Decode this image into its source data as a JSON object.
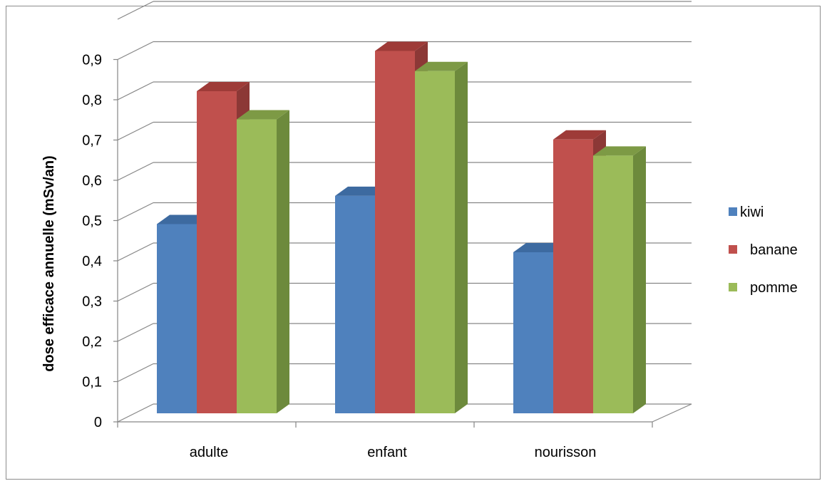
{
  "chart_data": {
    "type": "bar",
    "title": "",
    "xlabel": "",
    "ylabel": "dose efficace annuelle  (mSv/an)",
    "ylim": [
      0,
      0.9
    ],
    "yticks": [
      "0",
      "0,1",
      "0,2",
      "0,3",
      "0,4",
      "0,5",
      "0,6",
      "0,7",
      "0,8",
      "0,9"
    ],
    "categories": [
      "adulte",
      "enfant",
      "nourisson"
    ],
    "series": [
      {
        "name": "kiwi",
        "values": [
          0.47,
          0.54,
          0.4
        ],
        "color": "#4f81bd",
        "top": "#3d6aa0",
        "side": "#385d8a"
      },
      {
        "name": "banane",
        "values": [
          0.8,
          0.9,
          0.68
        ],
        "color": "#c0504d",
        "top": "#9e3b38",
        "side": "#8c3836"
      },
      {
        "name": "pomme",
        "values": [
          0.73,
          0.85,
          0.64
        ],
        "color": "#9bbb59",
        "top": "#7d9a45",
        "side": "#6d8a3c"
      }
    ],
    "grid": true,
    "legend": "right",
    "style": "3d-clustered-column"
  }
}
